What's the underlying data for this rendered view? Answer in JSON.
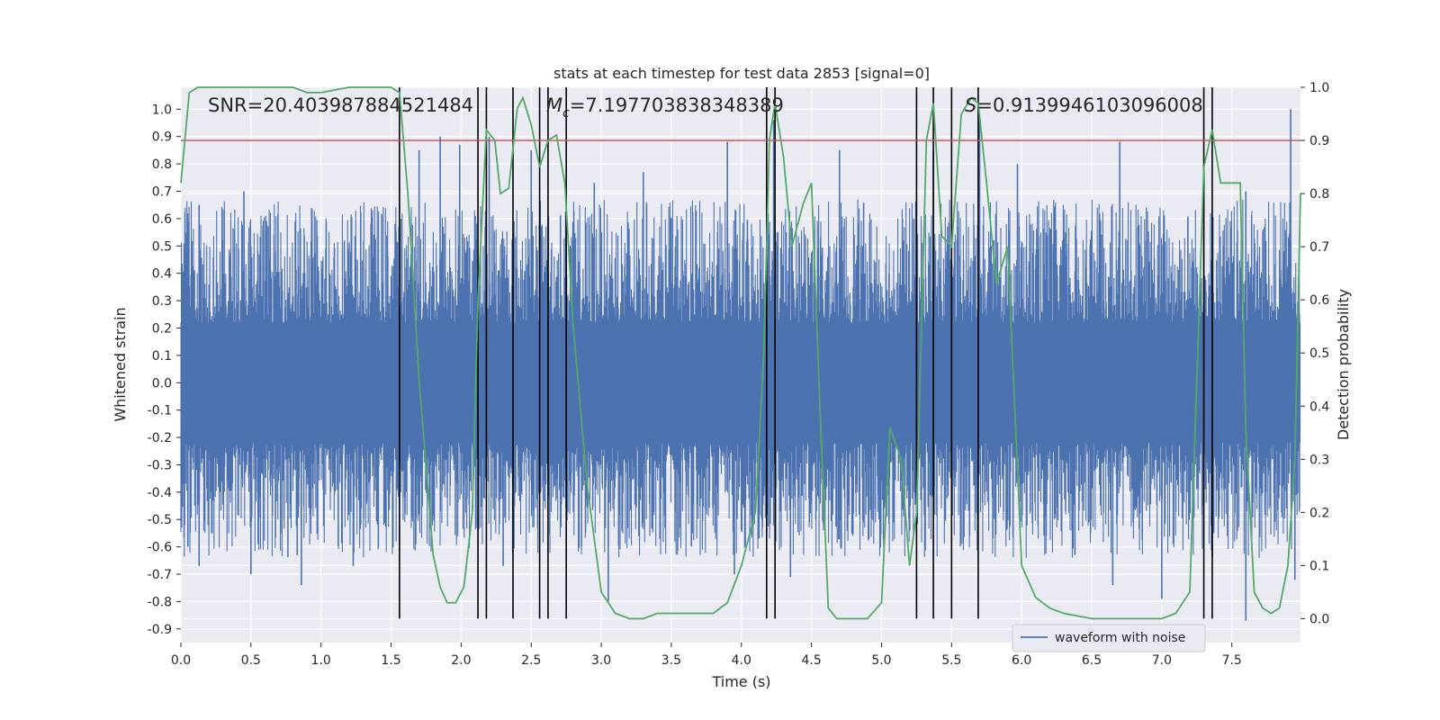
{
  "chart_data": {
    "type": "line",
    "title": "stats at each timestep for test data 2853 [signal=0]",
    "xlabel": "Time (s)",
    "ylabel": "Whitened strain",
    "ylabel_right": "Detection probability",
    "xlim": [
      0.0,
      7.99
    ],
    "ylim": [
      -0.95,
      1.08
    ],
    "ylim_right": [
      -0.045,
      1.0
    ],
    "x_ticks": [
      "0.0",
      "0.5",
      "1.0",
      "1.5",
      "2.0",
      "2.5",
      "3.0",
      "3.5",
      "4.0",
      "4.5",
      "5.0",
      "5.5",
      "6.0",
      "6.5",
      "7.0",
      "7.5"
    ],
    "y_ticks": [
      "1.0",
      "0.9",
      "0.8",
      "0.7",
      "0.6",
      "0.5",
      "0.4",
      "0.3",
      "0.2",
      "0.1",
      "0.0",
      "-0.1",
      "-0.2",
      "-0.3",
      "-0.4",
      "-0.5",
      "-0.6",
      "-0.7",
      "-0.8",
      "-0.9"
    ],
    "y_ticks_right": [
      "1.0",
      "0.9",
      "0.8",
      "0.7",
      "0.6",
      "0.5",
      "0.4",
      "0.3",
      "0.2",
      "0.1",
      "0.0"
    ],
    "grid": true,
    "legend": {
      "placement": "bottom-right",
      "entries": [
        "waveform with noise"
      ]
    },
    "annotations": {
      "snr": "SNR=20.403987884521484",
      "mc_symbol": "M",
      "mc_sub": "c",
      "mc_value": "=7.197703838348389",
      "s_symbol": "S",
      "s_value": "=0.9139946103096008"
    },
    "threshold_right": 0.9,
    "threshold_color": "#c44e52",
    "waveform_color": "#4c72b0",
    "probability_color": "#55a868",
    "event_color": "#000000",
    "event_lines_x": [
      1.56,
      2.12,
      2.18,
      2.37,
      2.56,
      2.62,
      2.75,
      4.18,
      4.24,
      5.25,
      5.37,
      5.5,
      5.69,
      7.3,
      7.36
    ],
    "series": [
      {
        "name": "waveform with noise",
        "envelope_x": [
          0.0,
          0.5,
          1.0,
          1.5,
          2.0,
          2.5,
          3.0,
          3.5,
          4.0,
          4.5,
          5.0,
          5.5,
          6.0,
          6.5,
          7.0,
          7.5,
          7.99
        ],
        "envelope_upper": [
          0.3,
          0.3,
          0.3,
          0.3,
          0.3,
          0.3,
          0.3,
          0.3,
          0.3,
          0.3,
          0.3,
          0.3,
          0.3,
          0.3,
          0.3,
          0.3,
          0.3
        ],
        "envelope_lower": [
          -0.3,
          -0.3,
          -0.3,
          -0.3,
          -0.3,
          -0.3,
          -0.3,
          -0.3,
          -0.3,
          -0.3,
          -0.3,
          -0.3,
          -0.3,
          -0.3,
          -0.3,
          -0.3,
          -0.3
        ],
        "peaks": [
          {
            "x": 0.04,
            "y": 0.55
          },
          {
            "x": 0.05,
            "y": -0.6
          },
          {
            "x": 0.13,
            "y": 0.65
          },
          {
            "x": 0.13,
            "y": -0.67
          },
          {
            "x": 0.45,
            "y": 0.7
          },
          {
            "x": 0.5,
            "y": -0.7
          },
          {
            "x": 0.86,
            "y": -0.74
          },
          {
            "x": 0.83,
            "y": -0.63
          },
          {
            "x": 1.23,
            "y": -0.67
          },
          {
            "x": 1.7,
            "y": 0.85
          },
          {
            "x": 1.85,
            "y": 0.9
          },
          {
            "x": 1.99,
            "y": 0.87
          },
          {
            "x": 2.2,
            "y": 0.9
          },
          {
            "x": 2.3,
            "y": -0.67
          },
          {
            "x": 2.5,
            "y": 0.85
          },
          {
            "x": 2.95,
            "y": 0.73
          },
          {
            "x": 3.05,
            "y": -0.8
          },
          {
            "x": 3.3,
            "y": 0.77
          },
          {
            "x": 3.9,
            "y": 0.88
          },
          {
            "x": 3.95,
            "y": -0.7
          },
          {
            "x": 4.23,
            "y": 0.96
          },
          {
            "x": 4.35,
            "y": -0.71
          },
          {
            "x": 4.7,
            "y": 0.85
          },
          {
            "x": 5.23,
            "y": 0.6
          },
          {
            "x": 5.37,
            "y": 0.85
          },
          {
            "x": 5.7,
            "y": 0.97
          },
          {
            "x": 5.97,
            "y": 0.8
          },
          {
            "x": 6.38,
            "y": -0.63
          },
          {
            "x": 6.65,
            "y": -0.74
          },
          {
            "x": 6.7,
            "y": 0.88
          },
          {
            "x": 7.0,
            "y": -0.79
          },
          {
            "x": 7.3,
            "y": 0.8
          },
          {
            "x": 7.6,
            "y": -0.87
          },
          {
            "x": 7.6,
            "y": 0.7
          },
          {
            "x": 7.92,
            "y": 1.0
          },
          {
            "x": 7.95,
            "y": -0.72
          }
        ]
      },
      {
        "name": "detection probability",
        "axis": "right",
        "x": [
          0.0,
          0.06,
          0.12,
          0.3,
          0.6,
          0.8,
          0.9,
          1.0,
          1.2,
          1.4,
          1.5,
          1.56,
          1.62,
          1.7,
          1.8,
          1.85,
          1.9,
          1.96,
          2.02,
          2.08,
          2.12,
          2.18,
          2.24,
          2.28,
          2.34,
          2.4,
          2.44,
          2.5,
          2.56,
          2.62,
          2.68,
          2.74,
          2.8,
          2.9,
          3.0,
          3.1,
          3.2,
          3.3,
          3.4,
          3.5,
          3.6,
          3.7,
          3.8,
          3.9,
          4.0,
          4.1,
          4.16,
          4.2,
          4.24,
          4.3,
          4.36,
          4.44,
          4.5,
          4.56,
          4.62,
          4.68,
          4.8,
          4.9,
          5.0,
          5.06,
          5.14,
          5.2,
          5.25,
          5.32,
          5.37,
          5.43,
          5.5,
          5.57,
          5.64,
          5.69,
          5.75,
          5.82,
          5.9,
          6.0,
          6.1,
          6.2,
          6.3,
          6.5,
          6.8,
          7.0,
          7.1,
          7.2,
          7.3,
          7.36,
          7.42,
          7.5,
          7.56,
          7.6,
          7.66,
          7.72,
          7.78,
          7.84,
          7.9,
          7.95,
          7.99
        ],
        "y": [
          0.82,
          0.99,
          1.0,
          1.0,
          1.0,
          1.0,
          0.99,
          0.99,
          1.0,
          1.0,
          1.0,
          0.99,
          0.8,
          0.45,
          0.12,
          0.06,
          0.03,
          0.03,
          0.06,
          0.2,
          0.6,
          0.92,
          0.9,
          0.8,
          0.81,
          0.96,
          0.98,
          0.93,
          0.85,
          0.9,
          0.91,
          0.82,
          0.55,
          0.25,
          0.05,
          0.01,
          0.0,
          0.0,
          0.01,
          0.01,
          0.01,
          0.01,
          0.01,
          0.03,
          0.1,
          0.2,
          0.5,
          0.9,
          0.97,
          0.87,
          0.7,
          0.78,
          0.82,
          0.4,
          0.02,
          0.0,
          0.0,
          0.0,
          0.03,
          0.36,
          0.3,
          0.1,
          0.2,
          0.9,
          0.97,
          0.72,
          0.7,
          0.95,
          0.98,
          0.97,
          0.82,
          0.63,
          0.7,
          0.1,
          0.04,
          0.02,
          0.01,
          0.0,
          0.0,
          0.0,
          0.01,
          0.05,
          0.85,
          0.92,
          0.82,
          0.82,
          0.82,
          0.35,
          0.05,
          0.02,
          0.01,
          0.02,
          0.1,
          0.3,
          0.8
        ]
      }
    ]
  }
}
